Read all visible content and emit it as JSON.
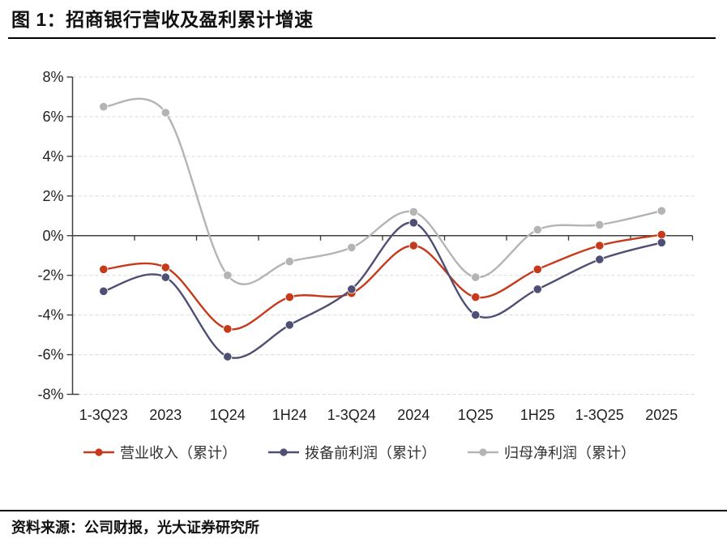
{
  "title": "图 1：招商银行营收及盈利累计增速",
  "source": "资料来源：公司财报，光大证券研究所",
  "colors": {
    "revenue": "#C7391B",
    "ppop": "#4F4F76",
    "net_profit": "#B4B4B4",
    "axis": "#404040",
    "grid": "#D9D9D9",
    "tick_text": "#1F1F1F"
  },
  "chart_data": {
    "type": "line",
    "title": "招商银行营收及盈利累计增速",
    "categories": [
      "1-3Q23",
      "2023",
      "1Q24",
      "1H24",
      "1-3Q24",
      "2024",
      "1Q25",
      "1H25",
      "1-3Q25",
      "2025"
    ],
    "series": [
      {
        "name": "营业收入（累计）",
        "color_key": "revenue",
        "values": [
          -1.7,
          -1.6,
          -4.7,
          -3.1,
          -2.9,
          -0.5,
          -3.1,
          -1.7,
          -0.5,
          0.05
        ]
      },
      {
        "name": "拨备前利润（累计）",
        "color_key": "ppop",
        "values": [
          -2.8,
          -2.1,
          -6.1,
          -4.5,
          -2.7,
          0.65,
          -4.0,
          -2.7,
          -1.2,
          -0.35
        ]
      },
      {
        "name": "归母净利润（累计）",
        "color_key": "net_profit",
        "values": [
          6.5,
          6.2,
          -2.0,
          -1.3,
          -0.6,
          1.2,
          -2.1,
          0.3,
          0.55,
          1.25
        ]
      }
    ],
    "ylim": [
      -8,
      8
    ],
    "ytick_step": 2,
    "ytick_labels": [
      "8%",
      "6%",
      "4%",
      "2%",
      "0%",
      "-2%",
      "-4%",
      "-6%",
      "-8%"
    ],
    "ytick_values": [
      8,
      6,
      4,
      2,
      0,
      -2,
      -4,
      -6,
      -8
    ],
    "grid": "horizontal-dashed",
    "line_style": "smooth-with-markers",
    "legend_position": "bottom"
  }
}
